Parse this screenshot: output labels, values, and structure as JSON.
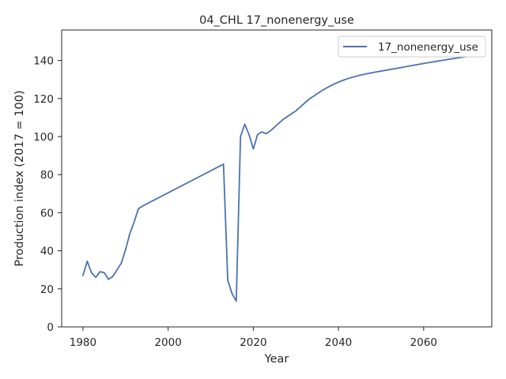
{
  "chart_data": {
    "type": "line",
    "title": "04_CHL 17_nonenergy_use",
    "xlabel": "Year",
    "ylabel": "Production index (2017 = 100)",
    "xlim": [
      1975,
      2076
    ],
    "ylim": [
      0,
      156
    ],
    "xticks": [
      1980,
      2000,
      2020,
      2040,
      2060
    ],
    "yticks": [
      0,
      20,
      40,
      60,
      80,
      100,
      120,
      140
    ],
    "grid": false,
    "legend_position": "top-right",
    "series": [
      {
        "name": "17_nonenergy_use",
        "color": "#4c72b0",
        "x": [
          1980,
          1981,
          1982,
          1983,
          1984,
          1985,
          1986,
          1987,
          1988,
          1989,
          1990,
          1991,
          1992,
          1993,
          1994,
          2013,
          2014,
          2015,
          2016,
          2017,
          2018,
          2019,
          2020,
          2021,
          2022,
          2023,
          2024,
          2025,
          2026,
          2027,
          2028,
          2029,
          2030,
          2031,
          2032,
          2033,
          2034,
          2035,
          2036,
          2037,
          2038,
          2039,
          2040,
          2041,
          2042,
          2043,
          2044,
          2045,
          2046,
          2047,
          2048,
          2049,
          2050,
          2055,
          2060,
          2065,
          2070,
          2071
        ],
        "values": [
          27,
          34.5,
          28.5,
          26,
          29,
          28.5,
          25,
          26.5,
          30,
          33.5,
          40.5,
          49,
          55,
          62,
          63.5,
          85.5,
          24.5,
          17.5,
          13.5,
          100,
          106.5,
          101,
          93.5,
          101,
          102.5,
          101.5,
          103,
          105,
          107,
          109,
          110.5,
          112,
          113.5,
          115.5,
          117.5,
          119.5,
          121,
          122.5,
          124,
          125.3,
          126.5,
          127.6,
          128.6,
          129.5,
          130.3,
          131,
          131.6,
          132.2,
          132.7,
          133.2,
          133.6,
          134,
          134.4,
          136.4,
          138.4,
          140.3,
          142,
          142.3
        ]
      }
    ]
  }
}
